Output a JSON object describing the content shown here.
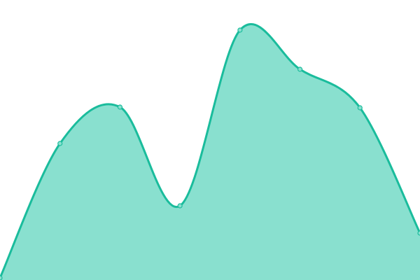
{
  "chart_data": {
    "type": "area",
    "title": "",
    "xlabel": "",
    "ylabel": "",
    "x": [
      0,
      1,
      2,
      3,
      4,
      5,
      6,
      7
    ],
    "series": [
      {
        "values": [
          3,
          195,
          247,
          106,
          357,
          301,
          246,
          67
        ]
      }
    ],
    "ylim": [
      0,
      400
    ],
    "xlim": [
      0,
      7
    ],
    "grid": false,
    "axes_visible": false,
    "curve": "smooth",
    "colors": {
      "line": "#1abc9c",
      "fill": "#89e0cf",
      "marker_fill": "#89e0cf"
    }
  }
}
